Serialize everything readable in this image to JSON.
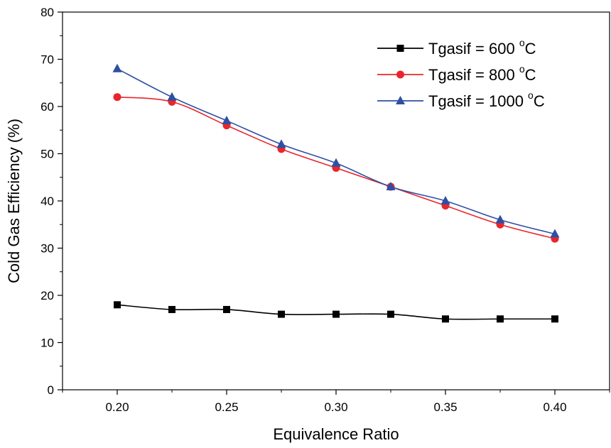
{
  "chart_data": {
    "type": "line",
    "title": "",
    "xlabel": "Equivalence Ratio",
    "ylabel": "Cold Gas Efficiency (%)",
    "xlim": [
      0.175,
      0.425
    ],
    "ylim": [
      0,
      80
    ],
    "x_ticks": [
      0.2,
      0.25,
      0.3,
      0.35,
      0.4
    ],
    "x_tick_labels": [
      "0.20",
      "0.25",
      "0.30",
      "0.35",
      "0.40"
    ],
    "y_ticks": [
      0,
      10,
      20,
      30,
      40,
      50,
      60,
      70,
      80
    ],
    "y_tick_labels": [
      "0",
      "10",
      "20",
      "30",
      "40",
      "50",
      "60",
      "70",
      "80"
    ],
    "grid": false,
    "legend_position": "top-right",
    "x": [
      0.2,
      0.225,
      0.25,
      0.275,
      0.3,
      0.325,
      0.35,
      0.375,
      0.4
    ],
    "series": [
      {
        "name": "Tgasif = 600 °C",
        "legend_main": "Tgasif = 600 ",
        "legend_sup": "o",
        "legend_unit": "C",
        "values": [
          18,
          17,
          17,
          16,
          16,
          16,
          15,
          15,
          15
        ],
        "color": "#000000",
        "marker": "square"
      },
      {
        "name": "Tgasif = 800 °C",
        "legend_main": "Tgasif = 800 ",
        "legend_sup": "o",
        "legend_unit": "C",
        "values": [
          62,
          61,
          56,
          51,
          47,
          43,
          39,
          35,
          32
        ],
        "color": "#e8262b",
        "marker": "circle"
      },
      {
        "name": "Tgasif = 1000 °C",
        "legend_main": "Tgasif = 1000 ",
        "legend_sup": "o",
        "legend_unit": "C",
        "values": [
          68,
          62,
          57,
          52,
          48,
          43,
          40,
          36,
          33
        ],
        "color": "#2e4fa3",
        "marker": "triangle"
      }
    ]
  }
}
